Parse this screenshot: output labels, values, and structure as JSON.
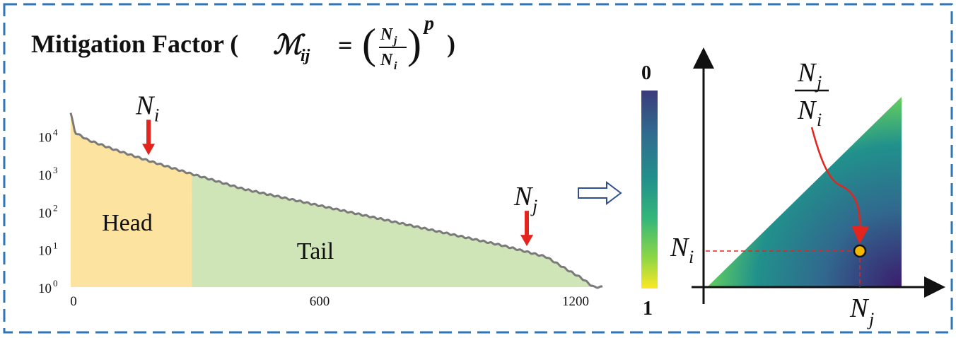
{
  "title": "Mitigation Factor (",
  "title_close": ")",
  "formula": {
    "lhs_base": "ℳ",
    "lhs_sub": "ij",
    "equals": "=",
    "num_base": "N",
    "num_sub": "j",
    "den_base": "N",
    "den_sub": "i",
    "exponent": "p"
  },
  "chart_data": {
    "type": "area",
    "y_scale": "log",
    "y_tick_labels": [
      {
        "base": "10",
        "exp": "0"
      },
      {
        "base": "10",
        "exp": "1"
      },
      {
        "base": "10",
        "exp": "2"
      },
      {
        "base": "10",
        "exp": "3"
      },
      {
        "base": "10",
        "exp": "4"
      }
    ],
    "x_tick_labels": [
      "0",
      "600",
      "1200"
    ],
    "xlim": [
      0,
      1230
    ],
    "ylim_log10": [
      0,
      4.8
    ],
    "regions": [
      {
        "label": "Head",
        "x_range": [
          0,
          280
        ],
        "color": "#fde3a0"
      },
      {
        "label": "Tail",
        "x_range": [
          280,
          1230
        ],
        "color": "#cfe5b8"
      }
    ],
    "curve": {
      "x": [
        0,
        10,
        40,
        100,
        180,
        280,
        400,
        600,
        800,
        1000,
        1100,
        1150,
        1180,
        1210,
        1230
      ],
      "log10_y": [
        4.62,
        4.1,
        3.9,
        3.65,
        3.35,
        3.0,
        2.6,
        2.1,
        1.6,
        1.1,
        0.8,
        0.45,
        0.25,
        0.0,
        0.0
      ]
    },
    "marker_i": {
      "label_base": "N",
      "label_sub": "i",
      "x": 180
    },
    "marker_j": {
      "label_base": "N",
      "label_sub": "j",
      "x": 1055
    }
  },
  "colorbar": {
    "top_label": "0",
    "bottom_label": "1",
    "colors": [
      "#3b3b7a",
      "#31688e",
      "#21918c",
      "#35b779",
      "#90d743",
      "#fde725"
    ]
  },
  "heatmap": {
    "ratio_num_base": "N",
    "ratio_num_sub": "j",
    "ratio_den_base": "N",
    "ratio_den_sub": "i",
    "axis_y_base": "N",
    "axis_y_sub": "i",
    "axis_x_base": "N",
    "axis_x_sub": "j"
  },
  "colors": {
    "border": "#2e75b6",
    "arrow_red": "#e3251d",
    "curve": "#7a7a7a",
    "dot": "#f5b800",
    "transition_arrow": "#2f4f8f"
  }
}
